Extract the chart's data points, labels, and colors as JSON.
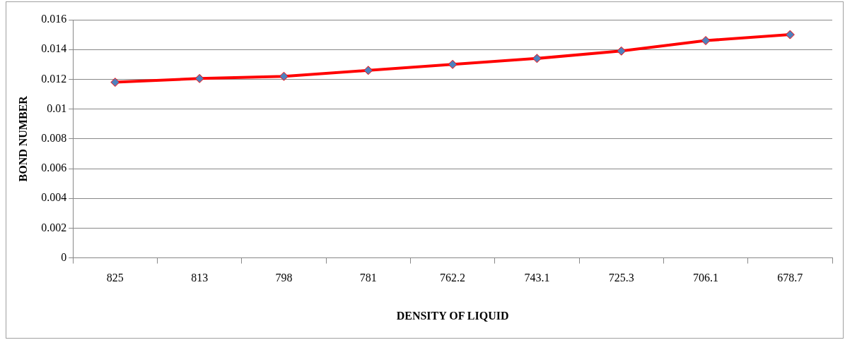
{
  "chart_data": {
    "type": "line",
    "xlabel": "DENSITY OF LIQUID",
    "ylabel": "BOND NUMBER",
    "categories": [
      "825",
      "813",
      "798",
      "781",
      "762.2",
      "743.1",
      "725.3",
      "706.1",
      "678.7"
    ],
    "series": [
      {
        "color": "#ff0000",
        "values": [
          0.0118,
          0.01205,
          0.0122,
          0.0126,
          0.013,
          0.0134,
          0.0139,
          0.0146,
          0.015
        ]
      }
    ],
    "ylim": [
      0,
      0.016
    ],
    "yticks": [
      0,
      0.002,
      0.004,
      0.006,
      0.008,
      0.01,
      0.012,
      0.014,
      0.016
    ],
    "grid": "y",
    "legend": false,
    "marker": "diamond",
    "line_style": "solid"
  }
}
